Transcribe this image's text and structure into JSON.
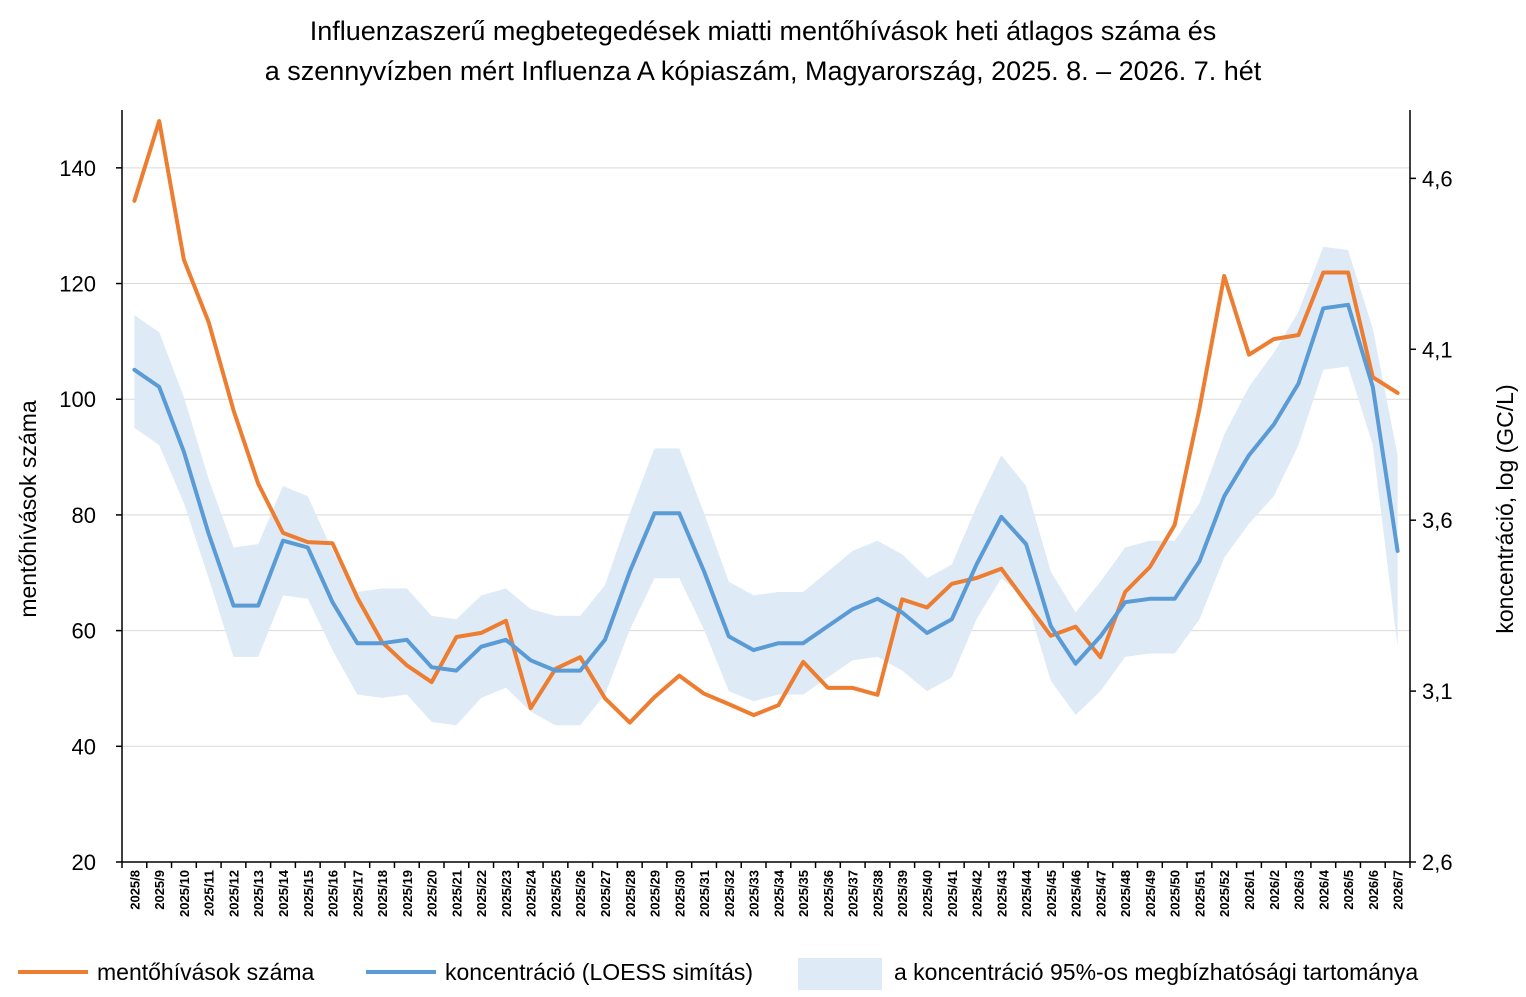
{
  "chart_data": {
    "type": "line",
    "title_line1": "Influenzaszerű megbetegedések miatti mentőhívások heti átlagos száma és",
    "title_line2": "a szennyvízben mért Influenza A kópiaszám, Magyarország, 2025. 8. – 2026. 7. hét",
    "ylabel_left": "mentőhívások száma",
    "ylabel_right": "koncentráció, log (GC/L)",
    "ylim_left": [
      20,
      150
    ],
    "yticks_left": [
      20,
      40,
      60,
      80,
      100,
      120,
      140
    ],
    "ylim_right": [
      2.6,
      4.8
    ],
    "yticks_right": [
      "2,6",
      "3,1",
      "3,6",
      "4,1",
      "4,6"
    ],
    "ytick_values_right": [
      2.6,
      3.1,
      3.6,
      4.1,
      4.6
    ],
    "grid": true,
    "categories": [
      "2025/8",
      "2025/9",
      "2025/10",
      "2025/11",
      "2025/12",
      "2025/13",
      "2025/14",
      "2025/15",
      "2025/16",
      "2025/17",
      "2025/18",
      "2025/19",
      "2025/20",
      "2025/21",
      "2025/22",
      "2025/23",
      "2025/24",
      "2025/25",
      "2025/26",
      "2025/27",
      "2025/28",
      "2025/29",
      "2025/30",
      "2025/31",
      "2025/32",
      "2025/33",
      "2025/34",
      "2025/35",
      "2025/36",
      "2025/37",
      "2025/38",
      "2025/39",
      "2025/40",
      "2025/41",
      "2025/42",
      "2025/43",
      "2025/44",
      "2025/45",
      "2025/46",
      "2025/47",
      "2025/48",
      "2025/49",
      "2025/50",
      "2025/51",
      "2025/52",
      "2026/1",
      "2026/2",
      "2026/3",
      "2026/4",
      "2026/5",
      "2026/6",
      "2026/7"
    ],
    "series": [
      {
        "name": "mentőhívások száma",
        "axis": "left",
        "color": "#ED7D31",
        "values": [
          134.3,
          148.1,
          124.1,
          113.3,
          98.1,
          85.4,
          76.9,
          75.3,
          75.1,
          65.7,
          58.0,
          54.0,
          51.1,
          58.9,
          59.6,
          61.7,
          46.6,
          53.4,
          55.4,
          48.3,
          44.1,
          48.5,
          52.2,
          49.1,
          47.3,
          45.4,
          47.1,
          54.6,
          50.1,
          50.1,
          48.9,
          65.4,
          64.0,
          68.1,
          69.1,
          70.7,
          64.9,
          59.1,
          60.7,
          55.4,
          66.7,
          71.0,
          78.3,
          98.4,
          121.3,
          107.7,
          110.4,
          111.1,
          121.9,
          121.9,
          103.8,
          101.1
        ]
      },
      {
        "name": "koncentráció (LOESS simítás)",
        "axis": "right",
        "color": "#5B9BD5",
        "values": [
          4.04,
          3.99,
          3.8,
          3.56,
          3.35,
          3.35,
          3.54,
          3.52,
          3.36,
          3.24,
          3.24,
          3.25,
          3.17,
          3.16,
          3.23,
          3.25,
          3.19,
          3.16,
          3.16,
          3.25,
          3.45,
          3.62,
          3.62,
          3.45,
          3.26,
          3.22,
          3.24,
          3.24,
          3.29,
          3.34,
          3.37,
          3.33,
          3.27,
          3.31,
          3.47,
          3.61,
          3.53,
          3.29,
          3.18,
          3.26,
          3.36,
          3.37,
          3.37,
          3.48,
          3.67,
          3.79,
          3.88,
          4.0,
          4.22,
          4.23,
          3.99,
          3.51
        ]
      }
    ],
    "band": {
      "name": "a koncentráció 95%-os megbízhatósági tartománya",
      "axis": "right",
      "color": "#DEEAF6",
      "lower": [
        3.87,
        3.82,
        3.65,
        3.43,
        3.2,
        3.2,
        3.38,
        3.37,
        3.22,
        3.09,
        3.08,
        3.09,
        3.01,
        3.0,
        3.08,
        3.11,
        3.04,
        3.0,
        3.0,
        3.09,
        3.28,
        3.43,
        3.43,
        3.28,
        3.1,
        3.07,
        3.09,
        3.09,
        3.14,
        3.19,
        3.2,
        3.16,
        3.1,
        3.14,
        3.31,
        3.43,
        3.37,
        3.13,
        3.03,
        3.1,
        3.2,
        3.21,
        3.21,
        3.31,
        3.49,
        3.59,
        3.67,
        3.82,
        4.04,
        4.05,
        3.82,
        3.23
      ],
      "upper": [
        4.2,
        4.15,
        3.96,
        3.72,
        3.52,
        3.53,
        3.7,
        3.67,
        3.51,
        3.39,
        3.4,
        3.4,
        3.32,
        3.31,
        3.38,
        3.4,
        3.34,
        3.32,
        3.32,
        3.41,
        3.62,
        3.81,
        3.81,
        3.62,
        3.42,
        3.38,
        3.39,
        3.39,
        3.45,
        3.51,
        3.54,
        3.5,
        3.43,
        3.47,
        3.64,
        3.79,
        3.7,
        3.45,
        3.33,
        3.42,
        3.52,
        3.54,
        3.54,
        3.65,
        3.85,
        3.99,
        4.09,
        4.21,
        4.4,
        4.39,
        4.16,
        3.79
      ]
    }
  }
}
